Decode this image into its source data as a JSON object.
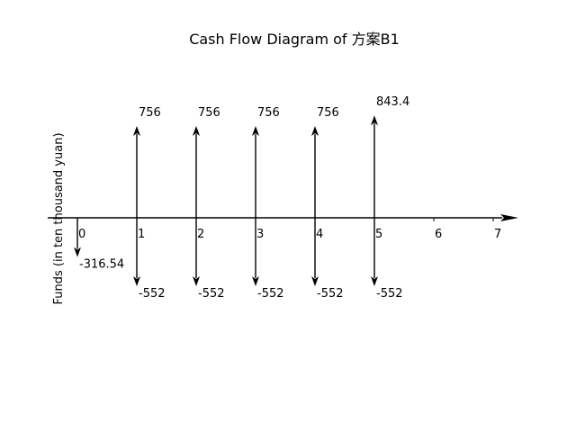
{
  "diagram": {
    "title": "Cash Flow Diagram of 方案B1",
    "ylabel": "Funds (in ten thousand yuan)",
    "periods": [
      "0",
      "1",
      "2",
      "3",
      "4",
      "5",
      "6",
      "7"
    ]
  },
  "chart_data": {
    "type": "cash-flow",
    "title": "Cash Flow Diagram of 方案B1",
    "ylabel": "Funds (in ten thousand yuan)",
    "x": [
      0,
      1,
      2,
      3,
      4,
      5,
      6,
      7
    ],
    "inflows": [
      {
        "period": 1,
        "value": 756,
        "label": "756"
      },
      {
        "period": 2,
        "value": 756,
        "label": "756"
      },
      {
        "period": 3,
        "value": 756,
        "label": "756"
      },
      {
        "period": 4,
        "value": 756,
        "label": "756"
      },
      {
        "period": 5,
        "value": 843.4,
        "label": "843.4"
      }
    ],
    "outflows": [
      {
        "period": 0,
        "value": -316.54,
        "label": "-316.54"
      },
      {
        "period": 1,
        "value": -552,
        "label": "-552"
      },
      {
        "period": 2,
        "value": -552,
        "label": "-552"
      },
      {
        "period": 3,
        "value": -552,
        "label": "-552"
      },
      {
        "period": 4,
        "value": -552,
        "label": "-552"
      },
      {
        "period": 5,
        "value": -552,
        "label": "-552"
      }
    ]
  }
}
